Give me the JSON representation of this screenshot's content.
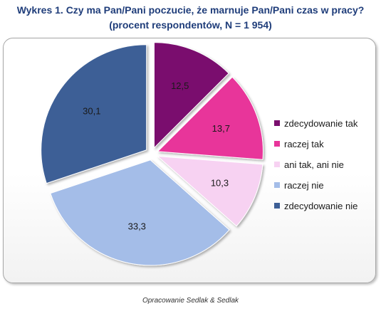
{
  "title": {
    "line1": "Wykres 1. Czy ma Pan/Pani poczucie, że marnuje Pan/Pani czas w pracy?",
    "line2": "(procent respondentów, N = 1 954)"
  },
  "source": "Opracowanie Sedlak & Sedlak",
  "chart_data": {
    "type": "pie",
    "categories": [
      "zdecydowanie tak",
      "raczej tak",
      "ani tak, ani nie",
      "raczej nie",
      "zdecydowanie nie"
    ],
    "values": [
      12.5,
      13.7,
      10.3,
      33.3,
      30.1
    ],
    "labels": [
      "12,5",
      "13,7",
      "10,3",
      "33,3",
      "30,1"
    ],
    "colors": [
      "#7a0f6e",
      "#e8349a",
      "#f7d2f2",
      "#a4bde8",
      "#3d5f96"
    ],
    "legend_position": "right",
    "exploded": true
  }
}
